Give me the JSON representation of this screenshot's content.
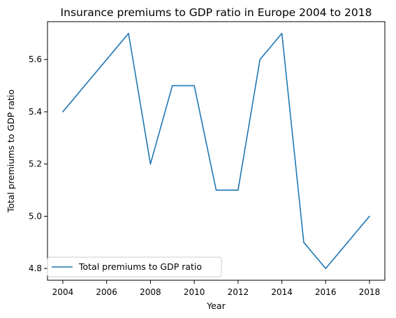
{
  "chart_data": {
    "type": "line",
    "title": "Insurance premiums to GDP ratio in Europe 2004 to 2018",
    "xlabel": "Year",
    "ylabel": "Total premiums to GDP ratio",
    "x": [
      2004,
      2005,
      2006,
      2007,
      2008,
      2009,
      2010,
      2011,
      2012,
      2013,
      2014,
      2015,
      2016,
      2017,
      2018
    ],
    "series": [
      {
        "name": "Total premiums to GDP ratio",
        "values": [
          5.4,
          5.5,
          5.6,
          5.7,
          5.2,
          5.5,
          5.5,
          5.1,
          5.1,
          5.6,
          5.7,
          4.9,
          4.8,
          4.9,
          5.0
        ],
        "color": "#1f77b4"
      }
    ],
    "xlim": [
      2003.3,
      2018.7
    ],
    "ylim": [
      4.755,
      5.745
    ],
    "xticks": [
      "2004",
      "2006",
      "2008",
      "2010",
      "2012",
      "2014",
      "2016",
      "2018"
    ],
    "yticks": [
      "4.8",
      "5.0",
      "5.2",
      "5.4",
      "5.6"
    ],
    "grid": false,
    "legend_position": "lower-left"
  }
}
